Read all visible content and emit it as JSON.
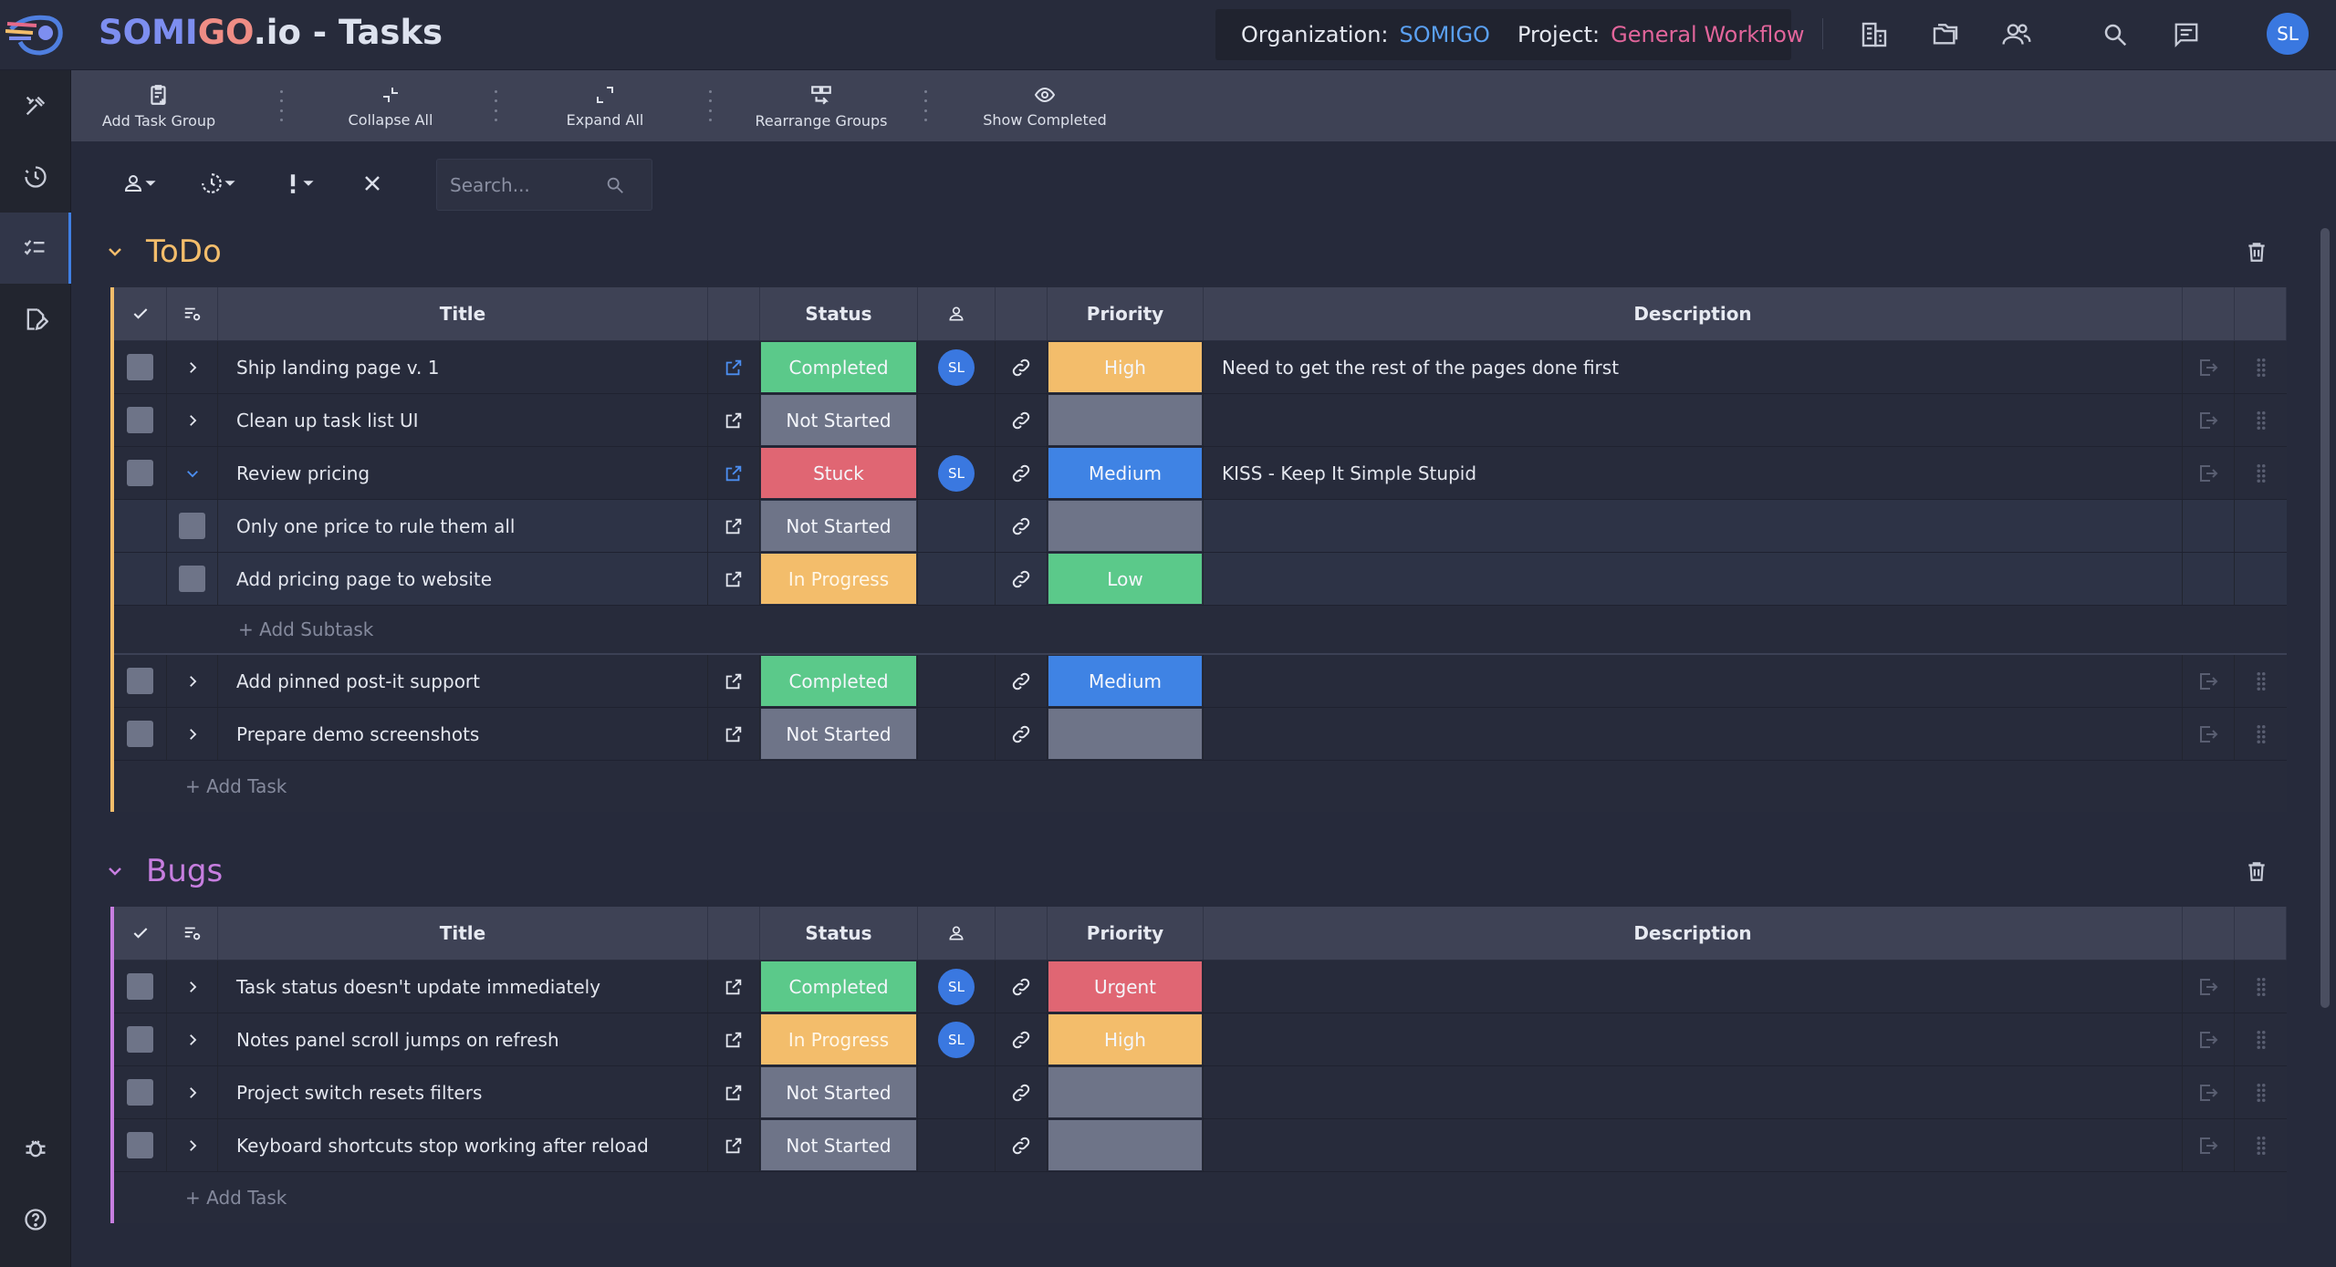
{
  "app": {
    "title_prefix_somi": "SOMI",
    "title_prefix_go": "GO",
    "title_suffix": ".io - Tasks",
    "org_label": "Organization:",
    "org_value": "SOMIGO",
    "project_label": "Project:",
    "project_value": "General Workflow",
    "user_initials": "SL"
  },
  "toolbar": {
    "add_group": "Add Task Group",
    "collapse": "Collapse All",
    "expand": "Expand All",
    "rearrange": "Rearrange Groups",
    "show_completed": "Show Completed"
  },
  "search": {
    "placeholder": "Search..."
  },
  "columns": {
    "title": "Title",
    "status": "Status",
    "priority": "Priority",
    "description": "Description"
  },
  "colors": {
    "completed": "#5bc98a",
    "not_started": "#6e7488",
    "stuck": "#e06673",
    "in_progress": "#f3bd6b",
    "high": "#f3bd6b",
    "medium": "#3f83e4",
    "low": "#5bc98a",
    "urgent": "#e06673",
    "todo_accent": "#f3bd6b",
    "bugs_accent": "#c77ee0"
  },
  "groups": {
    "todo": {
      "name": "ToDo",
      "add_task": "+ Add Task",
      "add_subtask": "+ Add Subtask",
      "rows": [
        {
          "title": "Ship landing page v. 1",
          "status": "Completed",
          "assignee": "SL",
          "priority": "High",
          "description": "Need to get the rest of the pages done first"
        },
        {
          "title": "Clean up task list UI",
          "status": "Not Started",
          "assignee": "",
          "priority": "",
          "description": ""
        },
        {
          "title": "Review pricing",
          "status": "Stuck",
          "assignee": "SL",
          "priority": "Medium",
          "description": "KISS - Keep It Simple Stupid"
        },
        {
          "title": "Only one price to rule them all",
          "status": "Not Started",
          "assignee": "",
          "priority": "",
          "description": ""
        },
        {
          "title": "Add pricing page to website",
          "status": "In Progress",
          "assignee": "",
          "priority": "Low",
          "description": ""
        },
        {
          "title": "Add pinned post-it support",
          "status": "Completed",
          "assignee": "",
          "priority": "Medium",
          "description": ""
        },
        {
          "title": "Prepare demo screenshots",
          "status": "Not Started",
          "assignee": "",
          "priority": "",
          "description": ""
        }
      ]
    },
    "bugs": {
      "name": "Bugs",
      "add_task": "+ Add Task",
      "rows": [
        {
          "title": "Task status doesn't update immediately",
          "status": "Completed",
          "assignee": "SL",
          "priority": "Urgent",
          "description": ""
        },
        {
          "title": "Notes panel scroll jumps on refresh",
          "status": "In Progress",
          "assignee": "SL",
          "priority": "High",
          "description": ""
        },
        {
          "title": "Project switch resets filters",
          "status": "Not Started",
          "assignee": "",
          "priority": "",
          "description": ""
        },
        {
          "title": "Keyboard shortcuts stop working after reload",
          "status": "Not Started",
          "assignee": "",
          "priority": "",
          "description": ""
        }
      ]
    }
  }
}
